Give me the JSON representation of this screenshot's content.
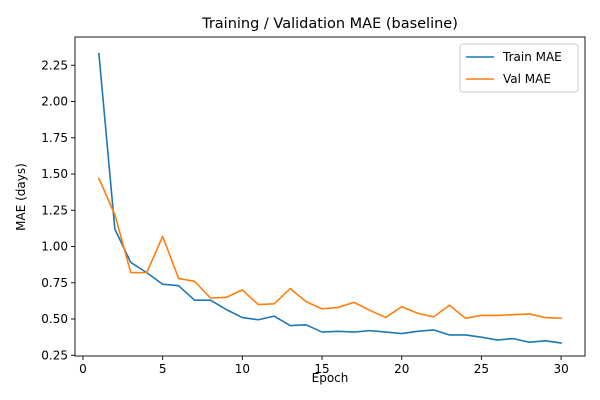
{
  "chart_data": {
    "type": "line",
    "title": "Training / Validation MAE (baseline)",
    "xlabel": "Epoch",
    "ylabel": "MAE (days)",
    "xlim": [
      -0.5,
      31.5
    ],
    "ylim": [
      0.245,
      2.445
    ],
    "xticks": [
      0,
      5,
      10,
      15,
      20,
      25,
      30
    ],
    "yticks": [
      0.25,
      0.5,
      0.75,
      1.0,
      1.25,
      1.5,
      1.75,
      2.0,
      2.25
    ],
    "ytick_labels": [
      "0.25",
      "0.50",
      "0.75",
      "1.00",
      "1.25",
      "1.50",
      "1.75",
      "2.00",
      "2.25"
    ],
    "grid": false,
    "legend_position": "top-right",
    "x": [
      1,
      2,
      3,
      4,
      5,
      6,
      7,
      8,
      9,
      10,
      11,
      12,
      13,
      14,
      15,
      16,
      17,
      18,
      19,
      20,
      21,
      22,
      23,
      24,
      25,
      26,
      27,
      28,
      29,
      30
    ],
    "series": [
      {
        "name": "Train MAE",
        "color": "#1f77b4",
        "values": [
          2.33,
          1.12,
          0.89,
          0.82,
          0.74,
          0.73,
          0.63,
          0.63,
          0.565,
          0.51,
          0.495,
          0.52,
          0.455,
          0.46,
          0.41,
          0.415,
          0.41,
          0.42,
          0.41,
          0.4,
          0.415,
          0.425,
          0.39,
          0.39,
          0.375,
          0.355,
          0.365,
          0.34,
          0.35,
          0.335
        ]
      },
      {
        "name": "Val MAE",
        "color": "#ff7f0e",
        "values": [
          1.47,
          1.22,
          0.82,
          0.82,
          1.07,
          0.78,
          0.76,
          0.645,
          0.65,
          0.7,
          0.6,
          0.605,
          0.71,
          0.62,
          0.57,
          0.58,
          0.615,
          0.56,
          0.51,
          0.585,
          0.54,
          0.515,
          0.595,
          0.505,
          0.525,
          0.525,
          0.53,
          0.535,
          0.51,
          0.505
        ]
      }
    ]
  }
}
